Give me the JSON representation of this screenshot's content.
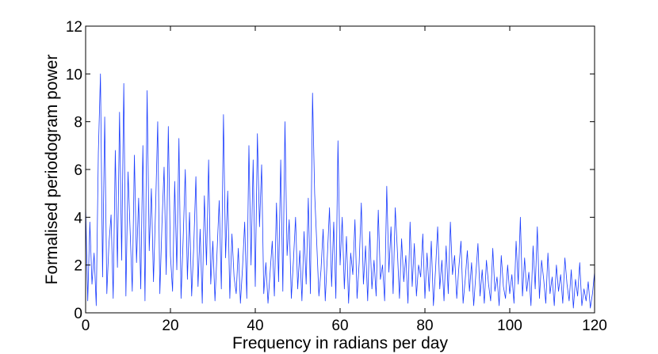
{
  "chart_data": {
    "type": "line",
    "xlabel": "Frequency in radians per day",
    "ylabel": "Formalised periodogram power",
    "xlim": [
      0,
      120
    ],
    "xticks": [
      0,
      20,
      40,
      60,
      80,
      100,
      120
    ],
    "ylim": [
      0,
      12
    ],
    "yticks": [
      0,
      2,
      4,
      6,
      8,
      10,
      12
    ],
    "x": [
      0,
      0.5,
      1,
      1.5,
      2,
      2.5,
      3,
      3.5,
      4,
      4.5,
      5,
      5.5,
      6,
      6.5,
      7,
      7.5,
      8,
      8.5,
      9,
      9.5,
      10,
      10.5,
      11,
      11.5,
      12,
      12.5,
      13,
      13.5,
      14,
      14.5,
      15,
      15.5,
      16,
      16.5,
      17,
      17.5,
      18,
      18.5,
      19,
      19.5,
      20,
      20.5,
      21,
      21.5,
      22,
      22.5,
      23,
      23.5,
      24,
      24.5,
      25,
      25.5,
      26,
      26.5,
      27,
      27.5,
      28,
      28.5,
      29,
      29.5,
      30,
      30.5,
      31,
      31.5,
      32,
      32.5,
      33,
      33.5,
      34,
      34.5,
      35,
      35.5,
      36,
      36.5,
      37,
      37.5,
      38,
      38.5,
      39,
      39.5,
      40,
      40.5,
      41,
      41.5,
      42,
      42.5,
      43,
      43.5,
      44,
      44.5,
      45,
      45.5,
      46,
      46.5,
      47,
      47.5,
      48,
      48.5,
      49,
      49.5,
      50,
      50.5,
      51,
      51.5,
      52,
      52.5,
      53,
      53.5,
      54,
      54.5,
      55,
      55.5,
      56,
      56.5,
      57,
      57.5,
      58,
      58.5,
      59,
      59.5,
      60,
      60.5,
      61,
      61.5,
      62,
      62.5,
      63,
      63.5,
      64,
      64.5,
      65,
      65.5,
      66,
      66.5,
      67,
      67.5,
      68,
      68.5,
      69,
      69.5,
      70,
      70.5,
      71,
      71.5,
      72,
      72.5,
      73,
      73.5,
      74,
      74.5,
      75,
      75.5,
      76,
      76.5,
      77,
      77.5,
      78,
      78.5,
      79,
      79.5,
      80,
      80.5,
      81,
      81.5,
      82,
      82.5,
      83,
      83.5,
      84,
      84.5,
      85,
      85.5,
      86,
      86.5,
      87,
      87.5,
      88,
      88.5,
      89,
      89.5,
      90,
      90.5,
      91,
      91.5,
      92,
      92.5,
      93,
      93.5,
      94,
      94.5,
      95,
      95.5,
      96,
      96.5,
      97,
      97.5,
      98,
      98.5,
      99,
      99.5,
      100,
      100.5,
      101,
      101.5,
      102,
      102.5,
      103,
      103.5,
      104,
      104.5,
      105,
      105.5,
      106,
      106.5,
      107,
      107.5,
      108,
      108.5,
      109,
      109.5,
      110,
      110.5,
      111,
      111.5,
      112,
      112.5,
      113,
      113.5,
      114,
      114.5,
      115,
      115.5,
      116,
      116.5,
      117,
      117.5,
      118,
      118.5,
      119,
      119.5,
      120
    ],
    "series": [
      {
        "color": "#1a3cff",
        "values": [
          4.5,
          0.5,
          3.8,
          1.2,
          2.5,
          0.3,
          6.7,
          10.0,
          1.5,
          8.2,
          0.8,
          2.9,
          4.1,
          0.6,
          6.8,
          1.9,
          8.4,
          2.2,
          9.6,
          0.7,
          5.9,
          3.4,
          0.9,
          6.6,
          2.1,
          4.8,
          1.0,
          7.0,
          0.5,
          9.3,
          2.6,
          5.2,
          1.3,
          4.4,
          8.0,
          0.8,
          3.7,
          6.1,
          1.6,
          7.8,
          2.4,
          0.9,
          5.5,
          1.8,
          7.3,
          0.6,
          3.1,
          6.0,
          1.4,
          4.2,
          0.7,
          2.8,
          5.7,
          1.1,
          3.5,
          0.4,
          4.9,
          2.0,
          6.4,
          1.2,
          3.0,
          0.5,
          2.6,
          4.7,
          1.0,
          8.3,
          2.3,
          5.1,
          0.6,
          3.3,
          1.5,
          0.8,
          2.7,
          0.4,
          1.9,
          3.8,
          0.6,
          7.0,
          2.0,
          6.4,
          1.1,
          7.5,
          3.6,
          6.2,
          0.8,
          2.1,
          0.4,
          1.7,
          3.0,
          0.7,
          4.6,
          1.3,
          6.4,
          0.9,
          8.0,
          2.4,
          3.9,
          0.6,
          2.2,
          4.0,
          1.0,
          2.6,
          0.5,
          3.4,
          1.2,
          4.8,
          0.8,
          9.2,
          5.0,
          2.9,
          0.7,
          1.8,
          3.5,
          0.5,
          2.4,
          4.4,
          1.1,
          3.8,
          0.6,
          7.2,
          2.0,
          4.0,
          1.0,
          3.2,
          0.4,
          2.5,
          1.6,
          3.9,
          0.6,
          2.1,
          4.6,
          1.2,
          2.8,
          0.5,
          3.4,
          1.0,
          2.2,
          0.7,
          4.3,
          1.4,
          2.0,
          0.5,
          5.3,
          1.7,
          3.6,
          0.8,
          4.4,
          2.6,
          0.6,
          3.1,
          1.3,
          2.4,
          0.4,
          3.8,
          1.1,
          2.9,
          0.7,
          2.0,
          1.5,
          3.3,
          0.6,
          2.5,
          0.9,
          3.0,
          0.3,
          1.8,
          3.6,
          1.0,
          2.2,
          0.5,
          2.8,
          0.8,
          3.8,
          1.6,
          2.4,
          0.6,
          1.9,
          3.0,
          0.4,
          1.4,
          2.6,
          0.9,
          2.1,
          0.3,
          1.6,
          2.9,
          0.7,
          1.8,
          0.4,
          2.2,
          1.2,
          0.5,
          2.7,
          0.9,
          1.5,
          0.3,
          2.4,
          1.1,
          0.6,
          2.0,
          0.8,
          1.6,
          0.4,
          3.0,
          1.2,
          4.0,
          0.7,
          2.3,
          0.9,
          1.7,
          0.3,
          2.8,
          1.0,
          3.6,
          0.6,
          2.2,
          1.4,
          0.4,
          2.5,
          0.8,
          1.5,
          0.3,
          2.0,
          0.9,
          1.6,
          0.4,
          2.3,
          1.2,
          0.5,
          1.8,
          0.2,
          1.4,
          0.7,
          2.1,
          0.3,
          1.0,
          0.5,
          1.3,
          0.2,
          0.8,
          1.7
        ]
      }
    ]
  }
}
